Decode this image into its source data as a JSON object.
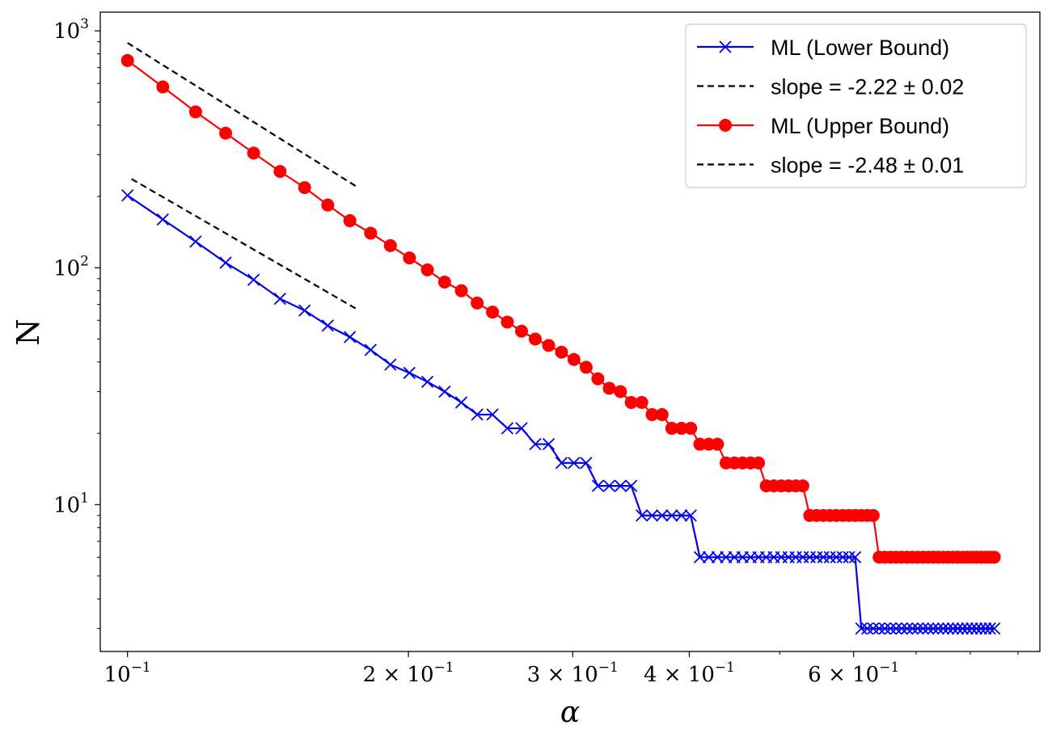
{
  "chart_data": {
    "type": "line",
    "xscale": "log",
    "yscale": "log",
    "xlim": [
      0.0935,
      0.95
    ],
    "ylim": [
      2.4,
      1200
    ],
    "xlabel": "α",
    "ylabel": "N",
    "grid": false,
    "legend_position": "top-right",
    "x_ticks": [
      {
        "value": 0.1,
        "label": "10",
        "exp": "−1"
      },
      {
        "value": 0.2,
        "label": "2 × 10",
        "exp": "−1"
      },
      {
        "value": 0.3,
        "label": "3 × 10",
        "exp": "−1"
      },
      {
        "value": 0.4,
        "label": "4 × 10",
        "exp": "−1"
      },
      {
        "value": 0.6,
        "label": "6 × 10",
        "exp": "−1"
      }
    ],
    "y_ticks": [
      {
        "value": 10,
        "label": "10",
        "exp": "1"
      },
      {
        "value": 100,
        "label": "10",
        "exp": "2"
      },
      {
        "value": 1000,
        "label": "10",
        "exp": "3"
      }
    ],
    "series": [
      {
        "name": "ML (Lower Bound)",
        "color": "#0000ee",
        "marker": "x",
        "x": [
          0.1,
          0.1091,
          0.1183,
          0.1274,
          0.1365,
          0.1457,
          0.1548,
          0.1639,
          0.1731,
          0.1822,
          0.1913,
          0.2005,
          0.2096,
          0.2187,
          0.2279,
          0.237,
          0.2461,
          0.2553,
          0.2644,
          0.2735,
          0.2827,
          0.2918,
          0.3009,
          0.3101,
          0.3192,
          0.3283,
          0.3375,
          0.3466,
          0.3557,
          0.3649,
          0.374,
          0.3831,
          0.3923,
          0.4014,
          0.4105,
          0.4197,
          0.4288,
          0.4379,
          0.4471,
          0.4562,
          0.4653,
          0.4745,
          0.4836,
          0.4927,
          0.5019,
          0.511,
          0.5201,
          0.5293,
          0.5384,
          0.5475,
          0.5567,
          0.5658,
          0.5749,
          0.5841,
          0.5932,
          0.6023,
          0.6115,
          0.6206,
          0.6297,
          0.6389,
          0.648,
          0.6571,
          0.6663,
          0.6754,
          0.6845,
          0.6937,
          0.7028,
          0.7119,
          0.7211,
          0.7302,
          0.7393,
          0.7485,
          0.7576,
          0.7667,
          0.7759,
          0.785,
          0.7941,
          0.8033,
          0.8124,
          0.8215,
          0.8307,
          0.8398,
          0.849
        ],
        "y": [
          202,
          160,
          129,
          105,
          89,
          74,
          66,
          57,
          51,
          45,
          39,
          36,
          33,
          30,
          27,
          24,
          24,
          21,
          21,
          18,
          18,
          15,
          15,
          15,
          12,
          12,
          12,
          12,
          9,
          9,
          9,
          9,
          9,
          9,
          6,
          6,
          6,
          6,
          6,
          6,
          6,
          6,
          6,
          6,
          6,
          6,
          6,
          6,
          6,
          6,
          6,
          6,
          6,
          6,
          6,
          6,
          3,
          3,
          3,
          3,
          3,
          3,
          3,
          3,
          3,
          3,
          3,
          3,
          3,
          3,
          3,
          3,
          3,
          3,
          3,
          3,
          3,
          3,
          3,
          3,
          3,
          3,
          3
        ]
      },
      {
        "name": "slope = -2.22 ± 0.02",
        "color": "#000000",
        "dashed": true,
        "x": [
          0.101,
          0.176
        ],
        "y": [
          237,
          67
        ]
      },
      {
        "name": "ML (Upper Bound)",
        "color": "#ff0000",
        "marker": "o",
        "x": [
          0.1,
          0.1091,
          0.1183,
          0.1274,
          0.1365,
          0.1457,
          0.1548,
          0.1639,
          0.1731,
          0.1822,
          0.1913,
          0.2005,
          0.2096,
          0.2187,
          0.2279,
          0.237,
          0.2461,
          0.2553,
          0.2644,
          0.2735,
          0.2827,
          0.2918,
          0.3009,
          0.3101,
          0.3192,
          0.3283,
          0.3375,
          0.3466,
          0.3557,
          0.3649,
          0.374,
          0.3831,
          0.3923,
          0.4014,
          0.4105,
          0.4197,
          0.4288,
          0.4379,
          0.4471,
          0.4562,
          0.4653,
          0.4745,
          0.4836,
          0.4927,
          0.5019,
          0.511,
          0.5201,
          0.5293,
          0.5384,
          0.5475,
          0.5567,
          0.5658,
          0.5749,
          0.5841,
          0.5932,
          0.6023,
          0.6115,
          0.6206,
          0.6297,
          0.6389,
          0.648,
          0.6571,
          0.6663,
          0.6754,
          0.6845,
          0.6937,
          0.7028,
          0.7119,
          0.7211,
          0.7302,
          0.7393,
          0.7485,
          0.7576,
          0.7667,
          0.7759,
          0.785,
          0.7941,
          0.8033,
          0.8124,
          0.8215,
          0.8307,
          0.8398,
          0.849
        ],
        "y": [
          750,
          580,
          455,
          370,
          305,
          255,
          218,
          184,
          158,
          140,
          124,
          110,
          98,
          87,
          80,
          71,
          65,
          59,
          54,
          50,
          47,
          44,
          41,
          38,
          34,
          31,
          30,
          27,
          27,
          24,
          24,
          21,
          21,
          21,
          18,
          18,
          18,
          15,
          15,
          15,
          15,
          15,
          12,
          12,
          12,
          12,
          12,
          12,
          9,
          9,
          9,
          9,
          9,
          9,
          9,
          9,
          9,
          9,
          9,
          6,
          6,
          6,
          6,
          6,
          6,
          6,
          6,
          6,
          6,
          6,
          6,
          6,
          6,
          6,
          6,
          6,
          6,
          6,
          6,
          6,
          6,
          6,
          6
        ]
      },
      {
        "name": "slope = -2.48 ± 0.01",
        "color": "#000000",
        "dashed": true,
        "x": [
          0.1,
          0.176
        ],
        "y": [
          890,
          220
        ]
      }
    ]
  }
}
